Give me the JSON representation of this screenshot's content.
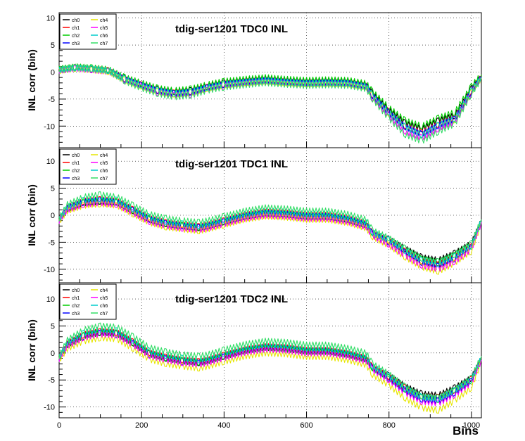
{
  "chart_data": [
    {
      "type": "line",
      "title": "tdig-ser1201 TDC0 INL",
      "ylabel": "INL corr (bin)",
      "xlabel": "",
      "xlim": [
        0,
        1024
      ],
      "ylim": [
        -14,
        11
      ],
      "xticks": [],
      "yticks": [
        "10",
        "5",
        "0",
        "-5",
        "-10"
      ],
      "grid": "dotted horizontal and vertical",
      "legend_position": "top-left",
      "x": [
        0,
        40,
        80,
        120,
        160,
        200,
        240,
        280,
        320,
        360,
        400,
        450,
        500,
        550,
        600,
        650,
        700,
        745,
        760,
        800,
        840,
        880,
        920,
        960,
        1000,
        1024
      ],
      "series": [
        {
          "name": "ch0",
          "color": "#000000",
          "values": [
            0.3,
            0.8,
            0.5,
            0.3,
            -1.2,
            -2.2,
            -3.2,
            -3.6,
            -3.4,
            -2.6,
            -2.0,
            -1.6,
            -1.3,
            -1.6,
            -1.8,
            -1.7,
            -1.8,
            -2.4,
            -4.0,
            -7.0,
            -9.5,
            -10.5,
            -9.0,
            -8.0,
            -3.0,
            -0.8
          ]
        },
        {
          "name": "ch1",
          "color": "#ff0000",
          "values": [
            0.4,
            0.9,
            0.6,
            0.3,
            -1.3,
            -2.4,
            -3.4,
            -3.9,
            -3.6,
            -2.8,
            -2.2,
            -1.8,
            -1.5,
            -1.8,
            -2.0,
            -1.9,
            -2.0,
            -2.6,
            -4.3,
            -7.4,
            -10.0,
            -11.2,
            -9.6,
            -8.5,
            -3.3,
            -0.9
          ]
        },
        {
          "name": "ch2",
          "color": "#00cc00",
          "values": [
            0.6,
            1.0,
            0.8,
            0.5,
            -1.0,
            -2.0,
            -3.0,
            -3.4,
            -3.1,
            -2.3,
            -1.7,
            -1.3,
            -1.0,
            -1.3,
            -1.5,
            -1.4,
            -1.5,
            -2.1,
            -3.6,
            -6.6,
            -9.0,
            -10.0,
            -8.5,
            -7.4,
            -2.6,
            -0.5
          ]
        },
        {
          "name": "ch3",
          "color": "#0000ff",
          "values": [
            0.3,
            0.8,
            0.5,
            0.2,
            -1.4,
            -2.5,
            -3.5,
            -4.0,
            -3.7,
            -2.9,
            -2.3,
            -1.9,
            -1.6,
            -1.9,
            -2.1,
            -2.0,
            -2.1,
            -2.7,
            -4.4,
            -7.6,
            -10.2,
            -11.5,
            -9.8,
            -8.7,
            -3.5,
            -1.0
          ]
        },
        {
          "name": "ch4",
          "color": "#e6e600",
          "values": [
            0.2,
            0.7,
            0.4,
            0.1,
            -1.5,
            -2.6,
            -3.6,
            -4.1,
            -3.8,
            -3.0,
            -2.4,
            -2.0,
            -1.7,
            -2.0,
            -2.2,
            -2.1,
            -2.2,
            -2.8,
            -4.5,
            -7.7,
            -10.3,
            -11.6,
            -9.9,
            -8.8,
            -3.6,
            -1.1
          ]
        },
        {
          "name": "ch5",
          "color": "#ff00ff",
          "values": [
            0.3,
            0.7,
            0.4,
            0.1,
            -1.6,
            -2.8,
            -3.8,
            -4.4,
            -4.1,
            -3.3,
            -2.6,
            -2.2,
            -1.9,
            -2.2,
            -2.4,
            -2.3,
            -2.4,
            -3.0,
            -4.8,
            -8.2,
            -11.0,
            -12.2,
            -10.4,
            -9.2,
            -3.8,
            -1.2
          ]
        },
        {
          "name": "ch6",
          "color": "#00cccc",
          "values": [
            0.4,
            0.8,
            0.6,
            0.3,
            -1.3,
            -2.4,
            -3.4,
            -3.9,
            -3.6,
            -2.8,
            -2.2,
            -1.8,
            -1.5,
            -1.8,
            -2.0,
            -1.9,
            -2.0,
            -2.6,
            -4.3,
            -7.5,
            -10.2,
            -11.6,
            -9.8,
            -8.6,
            -3.4,
            -0.9
          ]
        },
        {
          "name": "ch7",
          "color": "#33dd66",
          "values": [
            0.5,
            0.9,
            0.6,
            0.2,
            -1.7,
            -3.0,
            -4.0,
            -4.6,
            -4.3,
            -3.4,
            -2.8,
            -2.4,
            -2.0,
            -2.3,
            -2.5,
            -2.4,
            -2.5,
            -3.1,
            -5.0,
            -8.6,
            -11.6,
            -12.8,
            -11.0,
            -9.6,
            -4.0,
            -1.3
          ]
        }
      ]
    },
    {
      "type": "line",
      "title": "tdig-ser1201 TDC1 INL",
      "ylabel": "INL corr (bin)",
      "xlabel": "",
      "xlim": [
        0,
        1024
      ],
      "ylim": [
        -12.5,
        12.5
      ],
      "xticks": [],
      "yticks": [
        "10",
        "5",
        "0",
        "-5",
        "-10"
      ],
      "grid": "dotted horizontal and vertical",
      "legend_position": "top-left",
      "x": [
        0,
        20,
        60,
        100,
        140,
        180,
        220,
        260,
        300,
        340,
        360,
        400,
        450,
        500,
        550,
        600,
        650,
        700,
        745,
        760,
        800,
        840,
        880,
        920,
        960,
        1000,
        1024
      ],
      "series": [
        {
          "name": "ch0",
          "color": "#000000",
          "values": [
            -1.0,
            1.2,
            2.3,
            2.6,
            2.4,
            0.8,
            -0.8,
            -1.6,
            -2.0,
            -2.3,
            -2.0,
            -1.2,
            -0.2,
            0.4,
            0.2,
            -0.2,
            -0.2,
            -0.8,
            -1.8,
            -3.3,
            -4.5,
            -6.2,
            -7.8,
            -8.3,
            -7.0,
            -5.2,
            -1.0
          ]
        },
        {
          "name": "ch1",
          "color": "#ff0000",
          "values": [
            -0.8,
            1.4,
            2.6,
            2.9,
            2.6,
            1.0,
            -0.6,
            -1.4,
            -1.8,
            -2.1,
            -1.8,
            -1.0,
            0.0,
            0.6,
            0.4,
            0.0,
            0.0,
            -0.6,
            -1.6,
            -3.4,
            -4.8,
            -6.8,
            -8.6,
            -9.2,
            -7.8,
            -5.8,
            -1.1
          ]
        },
        {
          "name": "ch2",
          "color": "#00cc00",
          "values": [
            -0.9,
            1.3,
            2.5,
            2.8,
            2.5,
            0.9,
            -0.7,
            -1.5,
            -1.9,
            -2.2,
            -1.9,
            -1.1,
            -0.1,
            0.5,
            0.3,
            -0.1,
            -0.1,
            -0.7,
            -1.7,
            -3.3,
            -4.6,
            -6.5,
            -8.2,
            -8.8,
            -7.4,
            -5.5,
            -1.0
          ]
        },
        {
          "name": "ch3",
          "color": "#0000ff",
          "values": [
            -0.9,
            1.3,
            2.4,
            2.7,
            2.4,
            0.8,
            -0.8,
            -1.6,
            -2.0,
            -2.3,
            -2.0,
            -1.2,
            -0.2,
            0.4,
            0.2,
            -0.2,
            -0.2,
            -0.8,
            -1.8,
            -3.5,
            -5.0,
            -7.0,
            -8.8,
            -9.5,
            -8.0,
            -6.0,
            -1.2
          ]
        },
        {
          "name": "ch4",
          "color": "#e6e600",
          "values": [
            -1.2,
            0.8,
            1.8,
            2.1,
            1.8,
            0.2,
            -1.4,
            -2.2,
            -2.6,
            -2.9,
            -2.6,
            -1.8,
            -0.8,
            -0.2,
            -0.4,
            -0.8,
            -0.8,
            -1.4,
            -2.4,
            -4.0,
            -5.6,
            -7.8,
            -9.6,
            -10.4,
            -8.8,
            -6.6,
            -1.5
          ]
        },
        {
          "name": "ch5",
          "color": "#ff00ff",
          "values": [
            -1.0,
            1.0,
            2.0,
            2.3,
            2.0,
            0.4,
            -1.2,
            -2.0,
            -2.4,
            -2.7,
            -2.4,
            -1.6,
            -0.6,
            0.0,
            -0.2,
            -0.6,
            -0.6,
            -1.2,
            -2.2,
            -3.8,
            -5.4,
            -7.5,
            -9.3,
            -10.0,
            -8.5,
            -6.3,
            -1.3
          ]
        },
        {
          "name": "ch6",
          "color": "#00cccc",
          "values": [
            -0.8,
            1.5,
            2.8,
            3.1,
            2.8,
            1.2,
            -0.4,
            -1.2,
            -1.6,
            -1.9,
            -1.6,
            -0.8,
            0.2,
            0.8,
            0.6,
            0.2,
            0.2,
            -0.4,
            -1.4,
            -3.2,
            -4.6,
            -6.6,
            -8.4,
            -9.0,
            -7.6,
            -5.6,
            -1.0
          ]
        },
        {
          "name": "ch7",
          "color": "#33dd66",
          "values": [
            -0.6,
            2.0,
            3.4,
            3.8,
            3.4,
            1.8,
            0.2,
            -0.6,
            -1.0,
            -1.3,
            -1.0,
            -0.2,
            0.8,
            1.4,
            1.2,
            0.8,
            0.8,
            0.2,
            -0.8,
            -2.8,
            -4.2,
            -6.2,
            -8.0,
            -8.6,
            -7.2,
            -5.2,
            -0.8
          ]
        }
      ]
    },
    {
      "type": "line",
      "title": "tdig-ser1201 TDC2 INL",
      "ylabel": "INL corr (bin)",
      "xlabel": "Bins",
      "xlim": [
        0,
        1024
      ],
      "ylim": [
        -12,
        13
      ],
      "xticks": [
        "0",
        "200",
        "400",
        "600",
        "800",
        "1000"
      ],
      "yticks": [
        "10",
        "5",
        "0",
        "-5",
        "-10"
      ],
      "grid": "dotted horizontal and vertical",
      "legend_position": "top-left",
      "x": [
        0,
        20,
        60,
        100,
        140,
        180,
        220,
        260,
        300,
        340,
        360,
        400,
        450,
        500,
        550,
        600,
        650,
        700,
        745,
        760,
        800,
        840,
        880,
        920,
        960,
        1000,
        1024
      ],
      "series": [
        {
          "name": "ch0",
          "color": "#000000",
          "values": [
            -1.0,
            1.5,
            3.2,
            3.8,
            3.6,
            1.8,
            -0.2,
            -1.0,
            -1.5,
            -1.8,
            -1.5,
            -0.6,
            0.4,
            1.0,
            0.8,
            0.3,
            0.3,
            -0.3,
            -1.2,
            -2.6,
            -4.2,
            -6.2,
            -7.6,
            -7.8,
            -6.4,
            -4.6,
            -1.0
          ]
        },
        {
          "name": "ch1",
          "color": "#ff0000",
          "values": [
            -0.9,
            1.7,
            3.4,
            4.0,
            3.8,
            2.0,
            0.0,
            -0.8,
            -1.3,
            -1.6,
            -1.3,
            -0.4,
            0.6,
            1.2,
            1.0,
            0.5,
            0.5,
            -0.1,
            -1.0,
            -2.7,
            -4.4,
            -6.5,
            -8.0,
            -8.2,
            -6.8,
            -4.8,
            -1.0
          ]
        },
        {
          "name": "ch2",
          "color": "#00cc00",
          "values": [
            -1.0,
            1.6,
            3.3,
            3.9,
            3.7,
            1.9,
            -0.1,
            -0.9,
            -1.4,
            -1.7,
            -1.4,
            -0.5,
            0.5,
            1.1,
            0.9,
            0.4,
            0.4,
            -0.2,
            -1.1,
            -2.8,
            -4.6,
            -6.8,
            -8.3,
            -8.6,
            -7.0,
            -5.0,
            -1.1
          ]
        },
        {
          "name": "ch3",
          "color": "#0000ff",
          "values": [
            -1.0,
            1.5,
            3.1,
            3.7,
            3.5,
            1.7,
            -0.3,
            -1.1,
            -1.6,
            -1.9,
            -1.6,
            -0.7,
            0.3,
            0.9,
            0.7,
            0.2,
            0.2,
            -0.4,
            -1.3,
            -2.9,
            -4.7,
            -7.0,
            -8.6,
            -8.9,
            -7.3,
            -5.2,
            -1.2
          ]
        },
        {
          "name": "ch4",
          "color": "#e6e600",
          "values": [
            -1.4,
            0.8,
            2.2,
            2.8,
            2.6,
            0.8,
            -1.2,
            -2.0,
            -2.5,
            -2.8,
            -2.5,
            -1.6,
            -0.6,
            0.0,
            -0.2,
            -0.7,
            -0.7,
            -1.3,
            -2.2,
            -4.0,
            -6.0,
            -8.4,
            -10.2,
            -10.6,
            -8.8,
            -6.4,
            -1.6
          ]
        },
        {
          "name": "ch5",
          "color": "#ff00ff",
          "values": [
            -1.1,
            1.3,
            2.9,
            3.5,
            3.3,
            1.5,
            -0.5,
            -1.3,
            -1.8,
            -2.1,
            -1.8,
            -0.9,
            0.1,
            0.7,
            0.5,
            0.0,
            0.0,
            -0.6,
            -1.5,
            -3.1,
            -5.0,
            -7.4,
            -9.0,
            -9.3,
            -7.7,
            -5.5,
            -1.3
          ]
        },
        {
          "name": "ch6",
          "color": "#00cccc",
          "values": [
            -0.8,
            1.9,
            3.7,
            4.3,
            4.1,
            2.3,
            0.3,
            -0.5,
            -1.0,
            -1.3,
            -1.0,
            -0.1,
            0.9,
            1.5,
            1.3,
            0.8,
            0.8,
            0.2,
            -0.7,
            -2.5,
            -4.3,
            -6.6,
            -8.2,
            -8.5,
            -6.9,
            -4.9,
            -0.9
          ]
        },
        {
          "name": "ch7",
          "color": "#33dd66",
          "values": [
            -0.6,
            2.4,
            4.3,
            5.0,
            4.8,
            3.0,
            1.0,
            0.2,
            -0.3,
            -0.6,
            -0.3,
            0.6,
            1.6,
            2.2,
            2.0,
            1.5,
            1.5,
            0.9,
            0.0,
            -2.0,
            -3.9,
            -6.3,
            -8.0,
            -8.3,
            -6.7,
            -4.6,
            -0.6
          ]
        }
      ]
    }
  ]
}
